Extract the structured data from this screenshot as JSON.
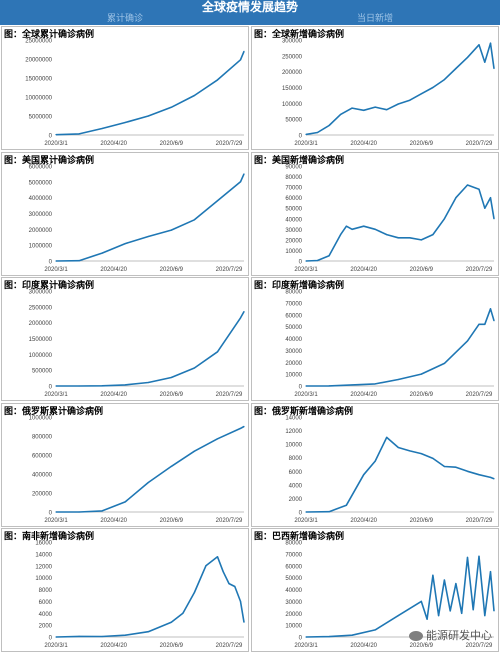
{
  "header": {
    "title": "全球疫情发展趋势",
    "left_column": "累计确诊",
    "right_column": "当日新增"
  },
  "watermark": "能源研发中心",
  "colors": {
    "accent": "#2e75b6",
    "line": "#1f77b4"
  },
  "chart_data": [
    {
      "type": "line",
      "title": "图：全球累计确诊病例",
      "x_ticks": [
        "2020/3/1",
        "2020/4/20",
        "2020/6/9",
        "2020/7/29"
      ],
      "x_domain": [
        "2020-03-01",
        "2020-08-11"
      ],
      "ylim": [
        0,
        25000000
      ],
      "y_ticks": [
        0,
        5000000,
        10000000,
        15000000,
        20000000,
        25000000
      ],
      "y_tick_labels": [
        "0",
        "5000000",
        "10000000",
        "15000000",
        "20000000",
        "25000000"
      ],
      "x": [
        "2020-03-01",
        "2020-03-21",
        "2020-04-10",
        "2020-04-30",
        "2020-05-20",
        "2020-06-09",
        "2020-06-29",
        "2020-07-19",
        "2020-08-08",
        "2020-08-11"
      ],
      "y": [
        90000,
        300000,
        1700000,
        3300000,
        5000000,
        7300000,
        10400000,
        14500000,
        19800000,
        22000000
      ]
    },
    {
      "type": "line",
      "title": "图：全球新增确诊病例",
      "x_ticks": [
        "2020/3/1",
        "2020/4/20",
        "2020/6/9",
        "2020/7/29"
      ],
      "x_domain": [
        "2020-03-01",
        "2020-08-11"
      ],
      "ylim": [
        0,
        300000
      ],
      "y_ticks": [
        0,
        50000,
        100000,
        150000,
        200000,
        250000,
        300000
      ],
      "y_tick_labels": [
        "0",
        "50000",
        "100000",
        "150000",
        "200000",
        "250000",
        "300000"
      ],
      "x": [
        "2020-03-01",
        "2020-03-11",
        "2020-03-21",
        "2020-03-31",
        "2020-04-10",
        "2020-04-20",
        "2020-04-30",
        "2020-05-10",
        "2020-05-20",
        "2020-05-30",
        "2020-06-09",
        "2020-06-19",
        "2020-06-29",
        "2020-07-09",
        "2020-07-19",
        "2020-07-29",
        "2020-08-03",
        "2020-08-08",
        "2020-08-11"
      ],
      "y": [
        2000,
        8000,
        30000,
        65000,
        85000,
        78000,
        88000,
        80000,
        98000,
        110000,
        130000,
        150000,
        175000,
        210000,
        245000,
        285000,
        230000,
        290000,
        210000
      ]
    },
    {
      "type": "line",
      "title": "图：美国累计确诊病例",
      "x_ticks": [
        "2020/3/1",
        "2020/4/20",
        "2020/6/9",
        "2020/7/29"
      ],
      "x_domain": [
        "2020-03-01",
        "2020-08-11"
      ],
      "ylim": [
        0,
        6000000
      ],
      "y_ticks": [
        0,
        1000000,
        2000000,
        3000000,
        4000000,
        5000000,
        6000000
      ],
      "y_tick_labels": [
        "0",
        "1000000",
        "2000000",
        "3000000",
        "4000000",
        "5000000",
        "6000000"
      ],
      "x": [
        "2020-03-01",
        "2020-03-21",
        "2020-04-10",
        "2020-04-30",
        "2020-05-20",
        "2020-06-09",
        "2020-06-29",
        "2020-07-19",
        "2020-08-08",
        "2020-08-11"
      ],
      "y": [
        0,
        20000,
        500000,
        1100000,
        1550000,
        1950000,
        2600000,
        3800000,
        5000000,
        5500000
      ]
    },
    {
      "type": "line",
      "title": "图：美国新增确诊病例",
      "x_ticks": [
        "2020/3/1",
        "2020/4/20",
        "2020/6/9",
        "2020/7/29"
      ],
      "x_domain": [
        "2020-03-01",
        "2020-08-11"
      ],
      "ylim": [
        0,
        90000
      ],
      "y_ticks": [
        0,
        10000,
        20000,
        30000,
        40000,
        50000,
        60000,
        70000,
        80000,
        90000
      ],
      "y_tick_labels": [
        "0",
        "10000",
        "20000",
        "30000",
        "40000",
        "50000",
        "60000",
        "70000",
        "80000",
        "90000"
      ],
      "x": [
        "2020-03-01",
        "2020-03-11",
        "2020-03-21",
        "2020-03-31",
        "2020-04-05",
        "2020-04-10",
        "2020-04-20",
        "2020-04-30",
        "2020-05-10",
        "2020-05-20",
        "2020-05-30",
        "2020-06-09",
        "2020-06-19",
        "2020-06-29",
        "2020-07-09",
        "2020-07-19",
        "2020-07-29",
        "2020-08-03",
        "2020-08-08",
        "2020-08-11"
      ],
      "y": [
        0,
        500,
        5000,
        25000,
        33000,
        30000,
        33000,
        30000,
        25000,
        22000,
        22000,
        20000,
        25000,
        40000,
        60000,
        72000,
        68000,
        50000,
        60000,
        40000
      ]
    },
    {
      "type": "line",
      "title": "图：印度累计确诊病例",
      "x_ticks": [
        "2020/3/1",
        "2020/4/20",
        "2020/6/9",
        "2020/7/29"
      ],
      "x_domain": [
        "2020-03-01",
        "2020-08-11"
      ],
      "ylim": [
        0,
        3000000
      ],
      "y_ticks": [
        0,
        500000,
        1000000,
        1500000,
        2000000,
        2500000,
        3000000
      ],
      "y_tick_labels": [
        "0",
        "500000",
        "1000000",
        "1500000",
        "2000000",
        "2500000",
        "3000000"
      ],
      "x": [
        "2020-03-01",
        "2020-03-21",
        "2020-04-10",
        "2020-04-30",
        "2020-05-20",
        "2020-06-09",
        "2020-06-29",
        "2020-07-19",
        "2020-08-08",
        "2020-08-11"
      ],
      "y": [
        0,
        300,
        7000,
        35000,
        110000,
        270000,
        570000,
        1080000,
        2150000,
        2350000
      ]
    },
    {
      "type": "line",
      "title": "图：印度新增确诊病例",
      "x_ticks": [
        "2020/3/1",
        "2020/4/20",
        "2020/6/9",
        "2020/7/29"
      ],
      "x_domain": [
        "2020-03-01",
        "2020-08-11"
      ],
      "ylim": [
        0,
        80000
      ],
      "y_ticks": [
        0,
        10000,
        20000,
        30000,
        40000,
        50000,
        60000,
        70000,
        80000
      ],
      "y_tick_labels": [
        "0",
        "10000",
        "20000",
        "30000",
        "40000",
        "50000",
        "60000",
        "70000",
        "80000"
      ],
      "x": [
        "2020-03-01",
        "2020-03-21",
        "2020-04-10",
        "2020-04-30",
        "2020-05-20",
        "2020-06-09",
        "2020-06-29",
        "2020-07-19",
        "2020-07-29",
        "2020-08-03",
        "2020-08-08",
        "2020-08-11"
      ],
      "y": [
        0,
        100,
        900,
        1800,
        5500,
        10000,
        19000,
        38000,
        52000,
        52000,
        65000,
        55000
      ]
    },
    {
      "type": "line",
      "title": "图：俄罗斯累计确诊病例",
      "x_ticks": [
        "2020/3/1",
        "2020/4/20",
        "2020/6/9",
        "2020/7/29"
      ],
      "x_domain": [
        "2020-03-01",
        "2020-08-11"
      ],
      "ylim": [
        0,
        1000000
      ],
      "y_ticks": [
        0,
        200000,
        400000,
        600000,
        800000,
        1000000
      ],
      "y_tick_labels": [
        "0",
        "200000",
        "400000",
        "600000",
        "800000",
        "1000000"
      ],
      "x": [
        "2020-03-01",
        "2020-03-21",
        "2020-04-10",
        "2020-04-30",
        "2020-05-20",
        "2020-06-09",
        "2020-06-29",
        "2020-07-19",
        "2020-08-08",
        "2020-08-11"
      ],
      "y": [
        0,
        300,
        12000,
        106000,
        310000,
        480000,
        640000,
        770000,
        880000,
        900000
      ]
    },
    {
      "type": "line",
      "title": "图：俄罗斯新增确诊病例",
      "x_ticks": [
        "2020/3/1",
        "2020/4/20",
        "2020/6/9",
        "2020/7/29"
      ],
      "x_domain": [
        "2020-03-01",
        "2020-08-11"
      ],
      "ylim": [
        0,
        14000
      ],
      "y_ticks": [
        0,
        2000,
        4000,
        6000,
        8000,
        10000,
        12000,
        14000
      ],
      "y_tick_labels": [
        "0",
        "2000",
        "4000",
        "6000",
        "8000",
        "10000",
        "12000",
        "14000"
      ],
      "x": [
        "2020-03-01",
        "2020-03-21",
        "2020-04-05",
        "2020-04-20",
        "2020-04-30",
        "2020-05-10",
        "2020-05-20",
        "2020-05-30",
        "2020-06-09",
        "2020-06-19",
        "2020-06-29",
        "2020-07-09",
        "2020-07-19",
        "2020-07-29",
        "2020-08-08",
        "2020-08-11"
      ],
      "y": [
        0,
        50,
        1000,
        5500,
        7500,
        11000,
        9500,
        9000,
        8600,
        7900,
        6700,
        6600,
        6000,
        5500,
        5100,
        4900
      ]
    },
    {
      "type": "line",
      "title": "图：南非新增确诊病例",
      "x_ticks": [
        "2020/3/1",
        "2020/4/20",
        "2020/6/9",
        "2020/7/29"
      ],
      "x_domain": [
        "2020-03-01",
        "2020-08-11"
      ],
      "ylim": [
        0,
        16000
      ],
      "y_ticks": [
        0,
        2000,
        4000,
        6000,
        8000,
        10000,
        12000,
        14000,
        16000
      ],
      "y_tick_labels": [
        "0",
        "2000",
        "4000",
        "6000",
        "8000",
        "10000",
        "12000",
        "14000",
        "16000"
      ],
      "x": [
        "2020-03-01",
        "2020-03-21",
        "2020-04-10",
        "2020-04-30",
        "2020-05-20",
        "2020-06-09",
        "2020-06-19",
        "2020-06-29",
        "2020-07-09",
        "2020-07-19",
        "2020-07-24",
        "2020-07-29",
        "2020-08-03",
        "2020-08-08",
        "2020-08-11"
      ],
      "y": [
        0,
        100,
        80,
        300,
        900,
        2500,
        4000,
        7500,
        12000,
        13500,
        11000,
        9000,
        8500,
        6000,
        2500
      ]
    },
    {
      "type": "line",
      "title": "图：巴西新增确诊病例",
      "x_ticks": [
        "2020/3/1",
        "2020/4/20",
        "2020/6/9",
        "2020/7/29"
      ],
      "x_domain": [
        "2020-03-01",
        "2020-08-11"
      ],
      "ylim": [
        0,
        80000
      ],
      "y_ticks": [
        0,
        10000,
        20000,
        30000,
        40000,
        50000,
        60000,
        70000,
        80000
      ],
      "y_tick_labels": [
        "0",
        "10000",
        "20000",
        "30000",
        "40000",
        "50000",
        "60000",
        "70000",
        "80000"
      ],
      "x": [
        "2020-03-01",
        "2020-03-21",
        "2020-04-10",
        "2020-04-30",
        "2020-05-20",
        "2020-06-09",
        "2020-06-14",
        "2020-06-19",
        "2020-06-24",
        "2020-06-29",
        "2020-07-04",
        "2020-07-09",
        "2020-07-14",
        "2020-07-19",
        "2020-07-24",
        "2020-07-29",
        "2020-08-03",
        "2020-08-08",
        "2020-08-11"
      ],
      "y": [
        0,
        300,
        1500,
        6000,
        18000,
        30000,
        15000,
        52000,
        18000,
        48000,
        22000,
        45000,
        20000,
        67000,
        23000,
        68000,
        18000,
        55000,
        22000
      ]
    }
  ]
}
